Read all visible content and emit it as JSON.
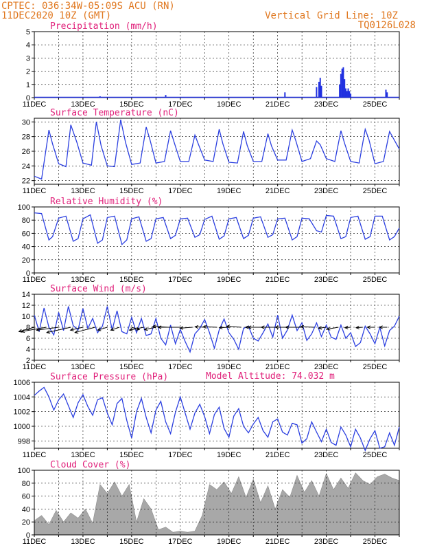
{
  "header": {
    "station": "CPTEC:   036:34W-05:09S  ACU (RN)",
    "run_time": "11DEC2020 10Z (GMT)",
    "grid_note": "Vertical Grid Line: 10Z",
    "model_code": "TQ0126L028",
    "model_altitude": "Model Altitude: 74.032 m",
    "color": "#e07820"
  },
  "colors": {
    "title": "#e0207a",
    "line": "#2b3fe0",
    "precip_bar": "#2030e0",
    "cloud_fill": "#a8a8a8",
    "wind_arrow": "#000000"
  },
  "x_ticks": [
    "11DEC",
    "13DEC",
    "15DEC",
    "17DEC",
    "19DEC",
    "21DEC",
    "23DEC",
    "25DEC"
  ],
  "chart_data": [
    {
      "type": "bar",
      "title": "Precipitation (mm/h)",
      "ylim": [
        0,
        5
      ],
      "yticks": [
        0,
        1,
        2,
        3,
        4,
        5
      ],
      "grid": true,
      "series": [
        {
          "day": [
            13.7,
            16.4,
            18.3,
            21.3,
            22.6,
            22.7,
            22.75,
            22.8,
            23.55,
            23.6,
            23.65,
            23.7,
            23.75,
            23.8,
            23.85,
            23.9,
            23.95,
            24.0,
            25.45,
            25.5
          ],
          "values": [
            0.1,
            0.2,
            0.05,
            0.4,
            0.8,
            1.2,
            1.5,
            0.9,
            1.0,
            1.8,
            2.2,
            2.3,
            1.4,
            0.7,
            0.5,
            0.7,
            0.5,
            0.3,
            0.6,
            0.4
          ]
        }
      ]
    },
    {
      "type": "line",
      "title": "Surface Temperature (nC)",
      "ylim": [
        21.5,
        30.5
      ],
      "yticks": [
        22,
        24,
        26,
        28,
        30
      ],
      "grid": true,
      "series": [
        {
          "day": [
            11.0,
            11.3,
            11.6,
            11.75,
            12.0,
            12.3,
            12.5,
            12.75,
            13.0,
            13.35,
            13.55,
            13.75,
            14.0,
            14.3,
            14.55,
            14.75,
            15.0,
            15.35,
            15.6,
            15.75,
            16.0,
            16.35,
            16.6,
            16.75,
            17.0,
            17.35,
            17.6,
            17.75,
            18.0,
            18.35,
            18.6,
            18.75,
            19.0,
            19.35,
            19.6,
            19.75,
            20.0,
            20.35,
            20.6,
            20.75,
            21.0,
            21.35,
            21.6,
            21.75,
            22.0,
            22.35,
            22.6,
            22.75,
            23.0,
            23.35,
            23.6,
            23.75,
            24.0,
            24.35,
            24.6,
            24.75,
            25.0,
            25.35,
            25.6,
            25.75,
            26.0
          ],
          "values": [
            22.6,
            22.2,
            28.9,
            27.0,
            24.3,
            23.9,
            29.6,
            27.2,
            24.4,
            24.1,
            30.0,
            26.7,
            24.0,
            23.9,
            30.3,
            27.2,
            24.2,
            24.4,
            29.3,
            27.6,
            24.4,
            24.6,
            28.8,
            27.2,
            24.6,
            24.6,
            28.2,
            26.9,
            24.8,
            24.6,
            29.0,
            27.0,
            24.5,
            24.4,
            28.7,
            26.8,
            24.6,
            24.6,
            28.4,
            26.7,
            24.8,
            24.8,
            28.9,
            27.4,
            24.6,
            25.0,
            27.4,
            26.9,
            25.0,
            24.6,
            28.8,
            27.1,
            24.6,
            24.4,
            29.0,
            27.6,
            24.3,
            24.6,
            28.7,
            27.8,
            26.3
          ]
        }
      ]
    },
    {
      "type": "line",
      "title": "Relative Humidity (%)",
      "ylim": [
        0,
        100
      ],
      "yticks": [
        0,
        20,
        40,
        60,
        80,
        100
      ],
      "grid": true,
      "series": [
        {
          "day": [
            11.0,
            11.3,
            11.6,
            11.75,
            12.0,
            12.3,
            12.6,
            12.8,
            13.0,
            13.3,
            13.6,
            13.8,
            14.0,
            14.3,
            14.6,
            14.8,
            15.0,
            15.3,
            15.6,
            15.8,
            16.0,
            16.3,
            16.6,
            16.8,
            17.0,
            17.3,
            17.6,
            17.8,
            18.0,
            18.3,
            18.6,
            18.8,
            19.0,
            19.3,
            19.6,
            19.8,
            20.0,
            20.3,
            20.6,
            20.8,
            21.0,
            21.3,
            21.6,
            21.8,
            22.0,
            22.3,
            22.6,
            22.8,
            23.0,
            23.3,
            23.6,
            23.8,
            24.0,
            24.3,
            24.6,
            24.8,
            25.0,
            25.3,
            25.6,
            25.8,
            26.0
          ],
          "values": [
            91,
            90,
            50,
            55,
            83,
            86,
            48,
            52,
            82,
            88,
            45,
            50,
            84,
            86,
            43,
            50,
            82,
            85,
            48,
            52,
            82,
            84,
            52,
            57,
            82,
            83,
            54,
            58,
            81,
            86,
            51,
            56,
            82,
            84,
            52,
            57,
            83,
            85,
            54,
            58,
            82,
            83,
            50,
            55,
            83,
            82,
            64,
            62,
            87,
            86,
            52,
            55,
            84,
            86,
            51,
            55,
            86,
            86,
            50,
            55,
            68
          ]
        }
      ]
    },
    {
      "type": "line",
      "title": "Surface Wind (m/s)",
      "ylim": [
        2,
        14
      ],
      "yticks": [
        2,
        4,
        6,
        8,
        10,
        12,
        14
      ],
      "grid": true,
      "series": [
        {
          "day": [
            11.0,
            11.2,
            11.4,
            11.6,
            11.8,
            12.0,
            12.2,
            12.4,
            12.6,
            12.8,
            13.0,
            13.2,
            13.4,
            13.6,
            13.8,
            14.0,
            14.2,
            14.4,
            14.6,
            14.8,
            15.0,
            15.2,
            15.4,
            15.6,
            15.8,
            16.0,
            16.2,
            16.4,
            16.6,
            16.8,
            17.0,
            17.2,
            17.4,
            17.6,
            17.8,
            18.0,
            18.2,
            18.4,
            18.6,
            18.8,
            19.0,
            19.2,
            19.4,
            19.6,
            19.8,
            20.0,
            20.2,
            20.4,
            20.6,
            20.8,
            21.0,
            21.2,
            21.4,
            21.6,
            21.8,
            22.0,
            22.2,
            22.4,
            22.6,
            22.8,
            23.0,
            23.2,
            23.4,
            23.6,
            23.8,
            24.0,
            24.2,
            24.4,
            24.6,
            24.8,
            25.0,
            25.2,
            25.4,
            25.6,
            25.8,
            26.0
          ],
          "values": [
            10.2,
            7.2,
            11.5,
            8.0,
            6.6,
            10.7,
            7.4,
            11.8,
            8.3,
            7.5,
            11.4,
            7.8,
            9.6,
            7.0,
            8.2,
            11.8,
            7.5,
            11.0,
            7.2,
            6.8,
            9.8,
            7.0,
            9.6,
            6.5,
            6.8,
            9.6,
            6.0,
            4.8,
            8.4,
            5.0,
            7.6,
            5.4,
            3.5,
            6.8,
            7.8,
            9.4,
            7.0,
            4.2,
            7.5,
            9.5,
            7.0,
            5.8,
            4.0,
            7.8,
            8.2,
            6.0,
            5.5,
            7.0,
            8.6,
            6.2,
            10.2,
            6.0,
            7.5,
            10.2,
            7.4,
            8.8,
            5.6,
            6.8,
            8.8,
            6.3,
            8.4,
            6.2,
            5.8,
            8.4,
            6.0,
            7.0,
            4.5,
            5.2,
            8.2,
            6.8,
            5.0,
            8.0,
            4.6,
            7.4,
            8.2,
            10.0
          ]
        }
      ],
      "vectors": [
        {
          "day": 11.0,
          "u": 1.6,
          "v": -0.45
        },
        {
          "day": 11.5,
          "u": 2.6,
          "v": -0.45
        },
        {
          "day": 12.0,
          "u": 2.3,
          "v": -0.3
        },
        {
          "day": 12.5,
          "u": 2.5,
          "v": -0.55
        },
        {
          "day": 13.0,
          "u": 1.3,
          "v": -0.3
        },
        {
          "day": 13.5,
          "u": 2.1,
          "v": -0.55
        },
        {
          "day": 14.0,
          "u": 1.0,
          "v": -0.3
        },
        {
          "day": 14.5,
          "u": 0.9,
          "v": -0.3
        },
        {
          "day": 15.0,
          "u": -0.8,
          "v": -0.25
        },
        {
          "day": 15.5,
          "u": 1.5,
          "v": -0.3
        },
        {
          "day": 16.0,
          "u": 1.2,
          "v": -0.25
        },
        {
          "day": 16.5,
          "u": 1.6,
          "v": 0.1
        },
        {
          "day": 17.0,
          "u": 2.3,
          "v": 0.0
        },
        {
          "day": 17.5,
          "u": 1.3,
          "v": -0.1
        },
        {
          "day": 18.0,
          "u": 1.0,
          "v": 0.05
        },
        {
          "day": 18.5,
          "u": 1.4,
          "v": 0.05
        },
        {
          "day": 19.0,
          "u": 1.0,
          "v": -0.05
        },
        {
          "day": 19.5,
          "u": 1.5,
          "v": 0.1
        },
        {
          "day": 20.0,
          "u": 0.8,
          "v": 0.0
        },
        {
          "day": 20.5,
          "u": 1.8,
          "v": 0.0
        },
        {
          "day": 21.0,
          "u": 1.7,
          "v": 0.0
        },
        {
          "day": 21.5,
          "u": 1.5,
          "v": 0.0
        },
        {
          "day": 22.0,
          "u": 1.7,
          "v": 0.0
        },
        {
          "day": 22.5,
          "u": 1.4,
          "v": 0.05
        },
        {
          "day": 23.0,
          "u": 0.8,
          "v": -0.1
        },
        {
          "day": 23.5,
          "u": 1.2,
          "v": -0.2
        },
        {
          "day": 24.0,
          "u": 0.6,
          "v": -0.05
        },
        {
          "day": 24.5,
          "u": 0.7,
          "v": -0.05
        },
        {
          "day": 25.0,
          "u": 0.8,
          "v": 0.0
        },
        {
          "day": 25.5,
          "u": 0.8,
          "v": 0.0
        }
      ]
    },
    {
      "type": "line",
      "title": "Surface Pressure (hPa)",
      "ylim": [
        997,
        1006
      ],
      "yticks": [
        998,
        1000,
        1002,
        1004,
        1006
      ],
      "grid": true,
      "series": [
        {
          "day": [
            11.0,
            11.2,
            11.4,
            11.6,
            11.8,
            12.0,
            12.2,
            12.4,
            12.6,
            12.8,
            13.0,
            13.2,
            13.4,
            13.6,
            13.8,
            14.0,
            14.2,
            14.4,
            14.6,
            14.8,
            15.0,
            15.2,
            15.4,
            15.6,
            15.8,
            16.0,
            16.2,
            16.4,
            16.6,
            16.8,
            17.0,
            17.2,
            17.4,
            17.6,
            17.8,
            18.0,
            18.2,
            18.4,
            18.6,
            18.8,
            19.0,
            19.2,
            19.4,
            19.6,
            19.8,
            20.0,
            20.2,
            20.4,
            20.6,
            20.8,
            21.0,
            21.2,
            21.4,
            21.6,
            21.8,
            22.0,
            22.2,
            22.4,
            22.6,
            22.8,
            23.0,
            23.2,
            23.4,
            23.6,
            23.8,
            24.0,
            24.2,
            24.4,
            24.6,
            24.8,
            25.0,
            25.2,
            25.4,
            25.6,
            25.8,
            26.0
          ],
          "values": [
            1004.2,
            1004.8,
            1005.3,
            1004.0,
            1002.2,
            1003.6,
            1004.4,
            1002.8,
            1001.2,
            1003.2,
            1004.3,
            1002.7,
            1001.5,
            1003.6,
            1003.9,
            1001.8,
            1000.2,
            1003.1,
            1003.8,
            1000.8,
            998.4,
            1002.0,
            1003.8,
            1001.2,
            999.1,
            1002.2,
            1003.4,
            1000.6,
            999.0,
            1001.9,
            1004.0,
            1001.8,
            999.6,
            1001.8,
            1003.0,
            1001.3,
            999.0,
            1001.6,
            1002.6,
            999.7,
            998.5,
            1001.4,
            1002.4,
            1000.0,
            999.1,
            1000.3,
            1001.2,
            999.4,
            998.5,
            1000.6,
            1001.0,
            999.2,
            998.8,
            1000.4,
            1000.2,
            997.7,
            998.3,
            1000.6,
            999.2,
            997.9,
            999.6,
            997.8,
            997.4,
            999.9,
            998.8,
            997.2,
            999.6,
            998.4,
            996.7,
            998.3,
            999.4,
            997.0,
            997.2,
            999.1,
            997.4,
            999.9
          ]
        }
      ]
    },
    {
      "type": "area",
      "title": "Cloud Cover (%)",
      "ylim": [
        0,
        100
      ],
      "yticks": [
        0,
        20,
        40,
        60,
        80,
        100
      ],
      "grid": true,
      "series": [
        {
          "day": [
            11.0,
            11.3,
            11.6,
            11.9,
            12.2,
            12.5,
            12.8,
            13.1,
            13.4,
            13.7,
            14.0,
            14.3,
            14.6,
            14.9,
            15.2,
            15.5,
            15.8,
            16.1,
            16.4,
            16.7,
            17.0,
            17.3,
            17.6,
            17.9,
            18.2,
            18.5,
            18.8,
            19.1,
            19.4,
            19.7,
            20.0,
            20.3,
            20.6,
            20.9,
            21.2,
            21.5,
            21.8,
            22.1,
            22.4,
            22.7,
            23.0,
            23.3,
            23.6,
            23.9,
            24.2,
            24.5,
            24.8,
            25.1,
            25.4,
            25.7,
            26.0
          ],
          "values": [
            22,
            30,
            16,
            38,
            20,
            34,
            26,
            40,
            18,
            78,
            64,
            82,
            60,
            78,
            20,
            56,
            40,
            8,
            12,
            4,
            6,
            4,
            6,
            30,
            78,
            70,
            82,
            64,
            90,
            58,
            86,
            50,
            76,
            40,
            70,
            58,
            92,
            66,
            84,
            60,
            95,
            70,
            88,
            72,
            96,
            84,
            78,
            90,
            94,
            88,
            84
          ]
        }
      ]
    }
  ]
}
